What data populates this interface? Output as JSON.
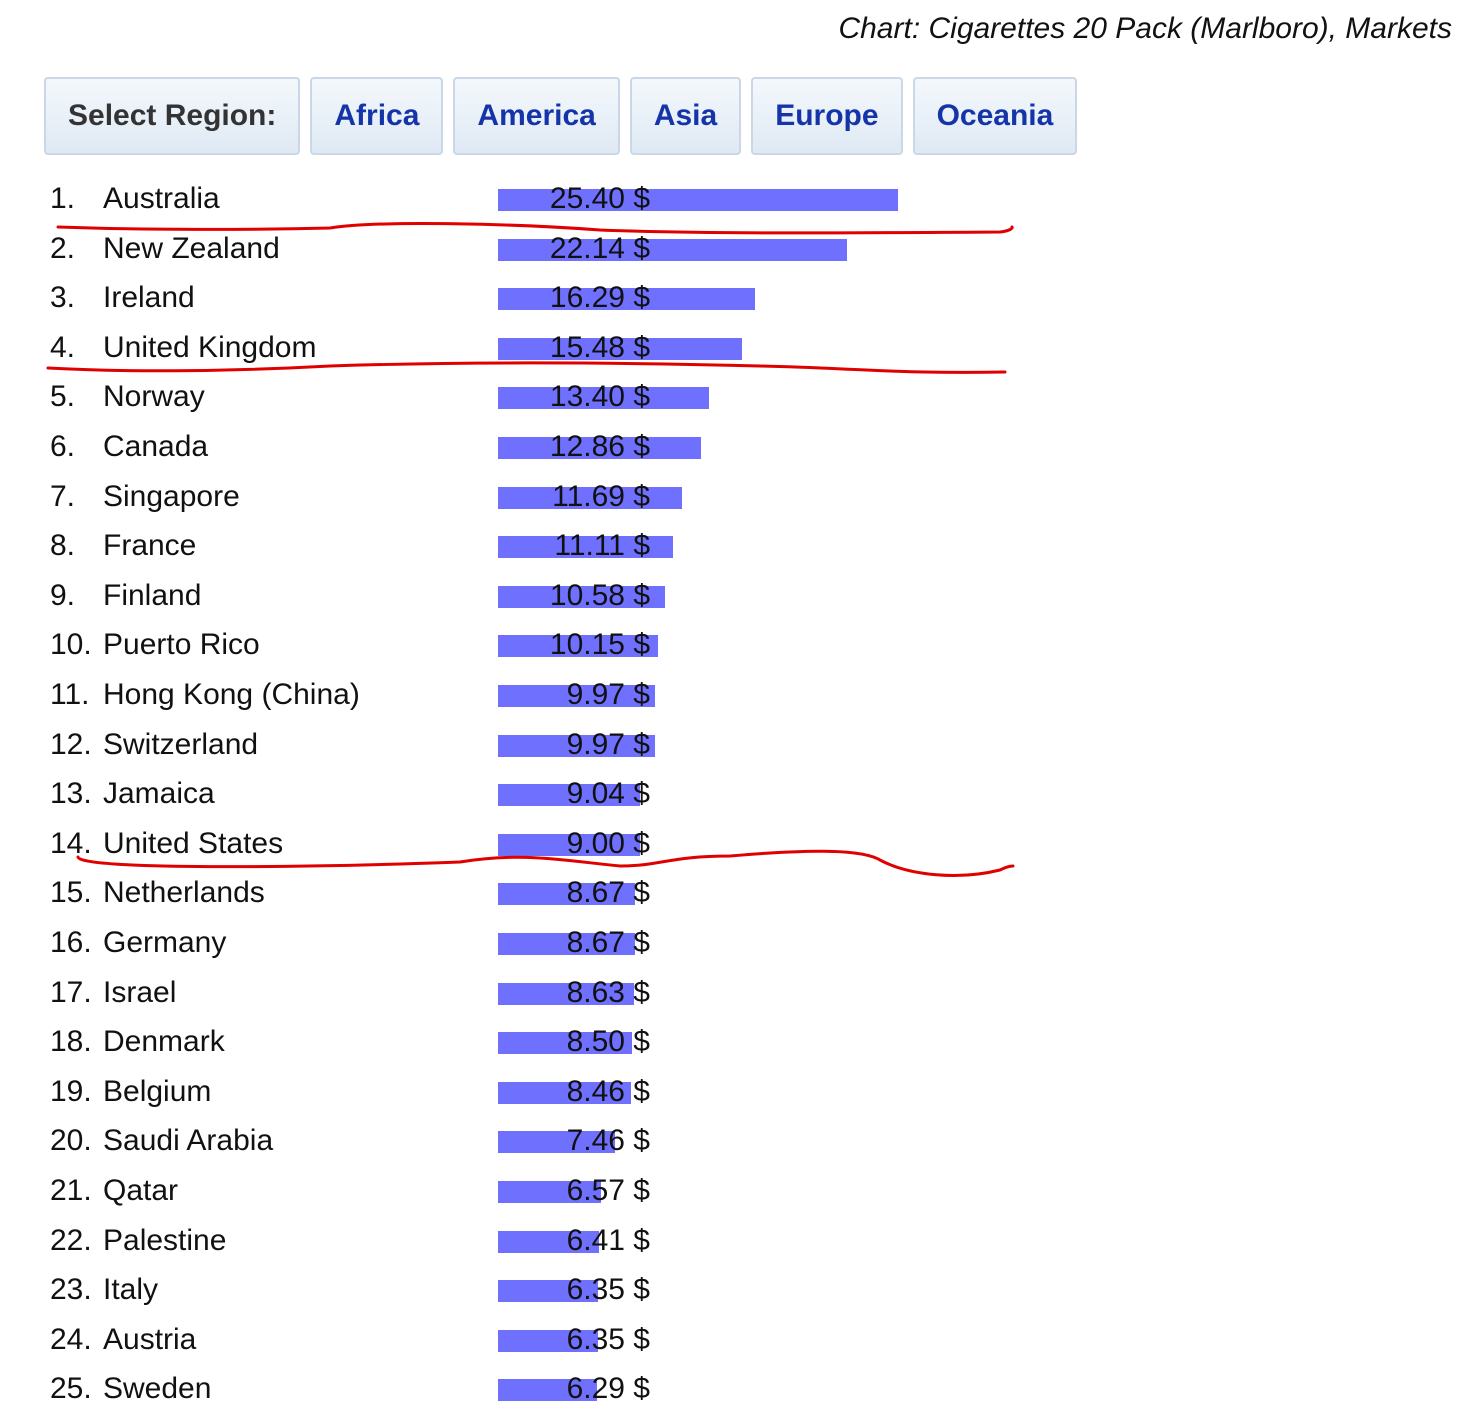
{
  "header": {
    "chart_title": "Chart: Cigarettes 20 Pack (Marlboro), Markets"
  },
  "regions": {
    "label": "Select Region:",
    "buttons": [
      "Africa",
      "America",
      "Asia",
      "Europe",
      "Oceania"
    ]
  },
  "colors": {
    "bar": "#7070ff",
    "button_text": "#1534a8",
    "annotation": "#e00000"
  },
  "chart_data": {
    "type": "bar",
    "orientation": "horizontal",
    "title": "Chart: Cigarettes 20 Pack (Marlboro), Markets",
    "unit": "$",
    "categories": [
      "Australia",
      "New Zealand",
      "Ireland",
      "United Kingdom",
      "Norway",
      "Canada",
      "Singapore",
      "France",
      "Finland",
      "Puerto Rico",
      "Hong Kong (China)",
      "Switzerland",
      "Jamaica",
      "United States",
      "Netherlands",
      "Germany",
      "Israel",
      "Denmark",
      "Belgium",
      "Saudi Arabia",
      "Qatar",
      "Palestine",
      "Italy",
      "Austria",
      "Sweden"
    ],
    "ranks": [
      "1.",
      "2.",
      "3.",
      "4.",
      "5.",
      "6.",
      "7.",
      "8.",
      "9.",
      "10.",
      "11.",
      "12.",
      "13.",
      "14.",
      "15.",
      "16.",
      "17.",
      "18.",
      "19.",
      "20.",
      "21.",
      "22.",
      "23.",
      "24.",
      "25."
    ],
    "values": [
      25.4,
      22.14,
      16.29,
      15.48,
      13.4,
      12.86,
      11.69,
      11.11,
      10.58,
      10.15,
      9.97,
      9.97,
      9.04,
      9.0,
      8.67,
      8.67,
      8.63,
      8.5,
      8.46,
      7.46,
      6.57,
      6.41,
      6.35,
      6.35,
      6.29
    ],
    "value_labels": [
      "25.40 $",
      "22.14 $",
      "16.29 $",
      "15.48 $",
      "13.40 $",
      "12.86 $",
      "11.69 $",
      "11.11 $",
      "10.58 $",
      "10.15 $",
      "9.97 $",
      "9.97 $",
      "9.04 $",
      "9.00 $",
      "8.67 $",
      "8.67 $",
      "8.63 $",
      "8.50 $",
      "8.46 $",
      "7.46 $",
      "6.57 $",
      "6.41 $",
      "6.35 $",
      "6.35 $",
      "6.29 $"
    ],
    "xlim": [
      0,
      25.4
    ],
    "grid": false,
    "annotations": {
      "type": "hand-drawn red underline",
      "after_ranks": [
        1,
        4,
        14
      ]
    }
  }
}
